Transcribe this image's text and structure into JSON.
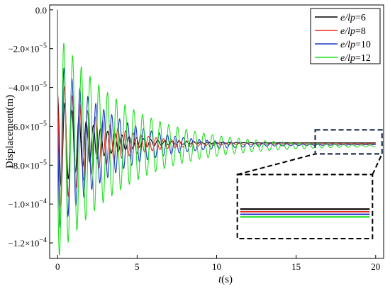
{
  "chart_data": {
    "type": "line",
    "title": "",
    "xlabel": {
      "var": "t",
      "unit": "(s)"
    },
    "ylabel": "Displacement(m)",
    "xlim": [
      -0.5,
      20.5
    ],
    "ylim": [
      -0.000128,
      2.5e-06
    ],
    "xticks": [
      {
        "value": 0,
        "label": "0"
      },
      {
        "value": 5,
        "label": "5"
      },
      {
        "value": 10,
        "label": "10"
      },
      {
        "value": 15,
        "label": "15"
      },
      {
        "value": 20,
        "label": "20"
      }
    ],
    "yticks": [
      {
        "value": 0,
        "mant": "0.0",
        "exp": ""
      },
      {
        "value": -2e-05,
        "mant": "−2.0×10",
        "exp": "−5"
      },
      {
        "value": -4e-05,
        "mant": "−4.0×10",
        "exp": "−5"
      },
      {
        "value": -6e-05,
        "mant": "−6.0×10",
        "exp": "−5"
      },
      {
        "value": -8e-05,
        "mant": "−8.0×10",
        "exp": "−5"
      },
      {
        "value": -0.0001,
        "mant": "−1.0×10",
        "exp": "−4"
      },
      {
        "value": -0.00012,
        "mant": "−1.2×10",
        "exp": "−4"
      }
    ],
    "grid": false,
    "legend_position": "top-right",
    "series": [
      {
        "name_var": "e/lp",
        "name_value": "=6",
        "color": "#000000",
        "steady": -6.85e-05,
        "initial_amplitude": 2.5e-05,
        "decay_time": 2.2,
        "period": 0.45,
        "t_end": 20
      },
      {
        "name_var": "e/lp",
        "name_value": "=8",
        "color": "#e8281e",
        "steady": -6.9e-05,
        "initial_amplitude": 3.5e-05,
        "decay_time": 2.6,
        "period": 0.48,
        "t_end": 20
      },
      {
        "name_var": "e/lp",
        "name_value": "=10",
        "color": "#1c35c9",
        "steady": -6.95e-05,
        "initial_amplitude": 4.5e-05,
        "decay_time": 3.2,
        "period": 0.5,
        "t_end": 20
      },
      {
        "name_var": "e/lp",
        "name_value": "=12",
        "color": "#1fe01f",
        "steady": -7e-05,
        "initial_amplitude": 5.8e-05,
        "decay_time": 4.2,
        "period": 0.55,
        "t_end": 20
      }
    ],
    "zoom_inset": {
      "x_range": [
        16.2,
        20.4
      ],
      "y_range": [
        -7.42e-05,
        -6.18e-05
      ]
    }
  }
}
